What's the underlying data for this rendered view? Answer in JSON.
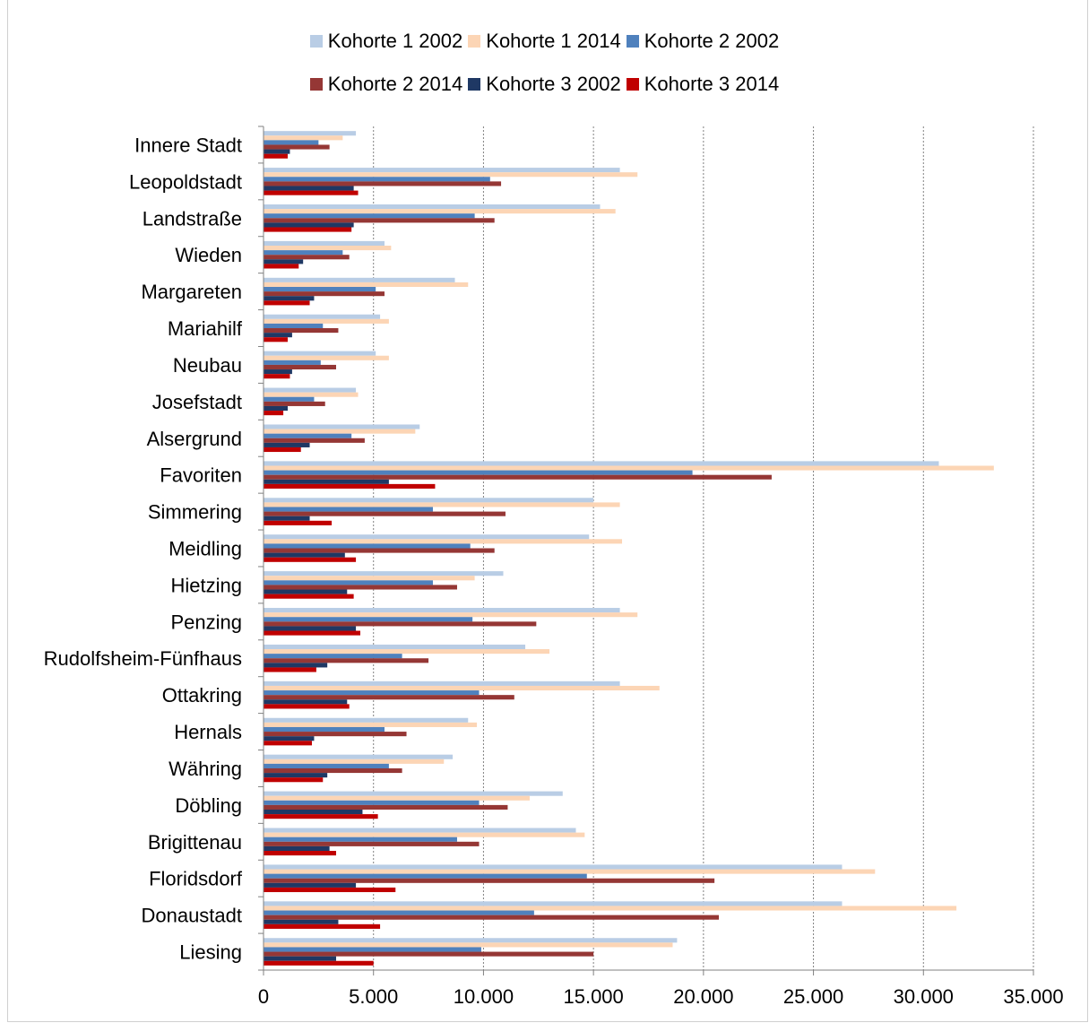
{
  "chart_data": {
    "type": "bar",
    "orientation": "horizontal",
    "categories": [
      "Innere Stadt",
      "Leopoldstadt",
      "Landstraße",
      "Wieden",
      "Margareten",
      "Mariahilf",
      "Neubau",
      "Josefstadt",
      "Alsergrund",
      "Favoriten",
      "Simmering",
      "Meidling",
      "Hietzing",
      "Penzing",
      "Rudolfsheim-Fünfhaus",
      "Ottakring",
      "Hernals",
      "Währing",
      "Döbling",
      "Brigittenau",
      "Floridsdorf",
      "Donaustadt",
      "Liesing"
    ],
    "series": [
      {
        "name": "Kohorte 1 2002",
        "color": "#b9cde5",
        "values": [
          4200,
          16200,
          15300,
          5500,
          8700,
          5300,
          5100,
          4200,
          7100,
          30700,
          15000,
          14800,
          10900,
          16200,
          11900,
          16200,
          9300,
          8600,
          13600,
          14200,
          26300,
          26300,
          18800
        ]
      },
      {
        "name": "Kohorte 1 2014",
        "color": "#fcd5b5",
        "values": [
          3600,
          17000,
          16000,
          5800,
          9300,
          5700,
          5700,
          4300,
          6900,
          33200,
          16200,
          16300,
          9600,
          17000,
          13000,
          18000,
          9700,
          8200,
          12100,
          14600,
          27800,
          31500,
          18600
        ]
      },
      {
        "name": "Kohorte 2 2002",
        "color": "#4f81bd",
        "values": [
          2500,
          10300,
          9600,
          3600,
          5100,
          2700,
          2600,
          2300,
          4000,
          19500,
          7700,
          9400,
          7700,
          9500,
          6300,
          9800,
          5500,
          5700,
          9800,
          8800,
          14700,
          12300,
          9900
        ]
      },
      {
        "name": "Kohorte 2 2014",
        "color": "#953735",
        "values": [
          3000,
          10800,
          10500,
          3900,
          5500,
          3400,
          3300,
          2800,
          4600,
          23100,
          11000,
          10500,
          8800,
          12400,
          7500,
          11400,
          6500,
          6300,
          11100,
          9800,
          20500,
          20700,
          15000
        ]
      },
      {
        "name": "Kohorte 3 2002",
        "color": "#1f3864",
        "values": [
          1200,
          4100,
          4100,
          1800,
          2300,
          1300,
          1300,
          1100,
          2100,
          5700,
          2100,
          3700,
          3800,
          4200,
          2900,
          3800,
          2300,
          2900,
          4500,
          3000,
          4200,
          3400,
          3300
        ]
      },
      {
        "name": "Kohorte 3 2014",
        "color": "#c00000",
        "values": [
          1100,
          4300,
          4000,
          1600,
          2100,
          1100,
          1200,
          900,
          1700,
          7800,
          3100,
          4200,
          4100,
          4400,
          2400,
          3900,
          2200,
          2700,
          5200,
          3300,
          6000,
          5300,
          5000
        ]
      }
    ],
    "x_ticks": [
      "0",
      "5.000",
      "10.000",
      "15.000",
      "20.000",
      "25.000",
      "30.000",
      "35.000"
    ],
    "xlim": [
      0,
      35000
    ],
    "grid": "vertical dotted",
    "legend_position": "top"
  }
}
